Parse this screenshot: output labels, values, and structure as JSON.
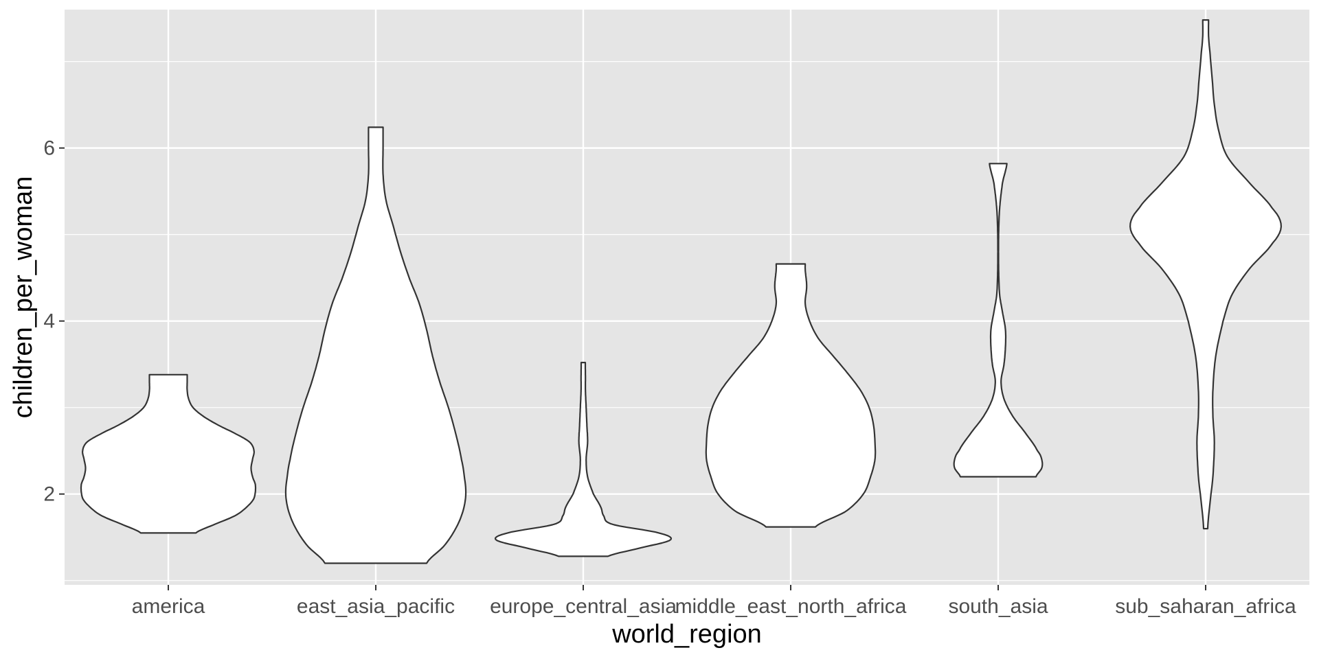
{
  "chart_data": {
    "type": "violin",
    "title": "",
    "xlabel": "world_region",
    "ylabel": "children_per_woman",
    "ylim": [
      0.95,
      7.6
    ],
    "yticks": [
      2,
      4,
      6
    ],
    "grid": true,
    "legend": "none",
    "colors": {
      "panel": "#e5e5e5",
      "grid": "#ffffff",
      "violin_fill": "#ffffff",
      "violin_stroke": "#333333"
    },
    "categories": [
      "america",
      "east_asia_pacific",
      "europe_central_asia",
      "middle_east_north_africa",
      "south_asia",
      "sub_saharan_africa"
    ],
    "series": [
      {
        "category": "america",
        "min": 1.55,
        "max": 3.38,
        "profile": [
          [
            1.55,
            0.19
          ],
          [
            1.65,
            0.32
          ],
          [
            1.75,
            0.46
          ],
          [
            1.85,
            0.54
          ],
          [
            1.95,
            0.59
          ],
          [
            2.1,
            0.6
          ],
          [
            2.2,
            0.58
          ],
          [
            2.3,
            0.57
          ],
          [
            2.4,
            0.58
          ],
          [
            2.5,
            0.59
          ],
          [
            2.6,
            0.56
          ],
          [
            2.7,
            0.46
          ],
          [
            2.8,
            0.34
          ],
          [
            2.9,
            0.24
          ],
          [
            3.0,
            0.17
          ],
          [
            3.1,
            0.14
          ],
          [
            3.2,
            0.13
          ],
          [
            3.3,
            0.13
          ],
          [
            3.38,
            0.13
          ]
        ]
      },
      {
        "category": "east_asia_pacific",
        "min": 1.2,
        "max": 6.24,
        "profile": [
          [
            1.2,
            0.35
          ],
          [
            1.4,
            0.47
          ],
          [
            1.6,
            0.55
          ],
          [
            1.8,
            0.6
          ],
          [
            2.0,
            0.62
          ],
          [
            2.2,
            0.61
          ],
          [
            2.4,
            0.59
          ],
          [
            2.7,
            0.55
          ],
          [
            3.0,
            0.5
          ],
          [
            3.3,
            0.44
          ],
          [
            3.6,
            0.39
          ],
          [
            3.9,
            0.35
          ],
          [
            4.2,
            0.3
          ],
          [
            4.5,
            0.23
          ],
          [
            4.8,
            0.17
          ],
          [
            5.1,
            0.12
          ],
          [
            5.4,
            0.07
          ],
          [
            5.7,
            0.05
          ],
          [
            6.0,
            0.05
          ],
          [
            6.24,
            0.05
          ]
        ]
      },
      {
        "category": "europe_central_asia",
        "min": 1.28,
        "max": 3.52,
        "profile": [
          [
            1.28,
            0.17
          ],
          [
            1.38,
            0.4
          ],
          [
            1.47,
            0.6
          ],
          [
            1.55,
            0.52
          ],
          [
            1.65,
            0.2
          ],
          [
            1.75,
            0.14
          ],
          [
            1.85,
            0.12
          ],
          [
            2.0,
            0.07
          ],
          [
            2.2,
            0.03
          ],
          [
            2.4,
            0.02
          ],
          [
            2.6,
            0.03
          ],
          [
            2.8,
            0.025
          ],
          [
            3.0,
            0.02
          ],
          [
            3.2,
            0.015
          ],
          [
            3.35,
            0.015
          ],
          [
            3.52,
            0.014
          ]
        ]
      },
      {
        "category": "middle_east_north_africa",
        "min": 1.62,
        "max": 4.66,
        "profile": [
          [
            1.62,
            0.17
          ],
          [
            1.8,
            0.38
          ],
          [
            2.0,
            0.5
          ],
          [
            2.2,
            0.55
          ],
          [
            2.4,
            0.58
          ],
          [
            2.6,
            0.58
          ],
          [
            2.8,
            0.57
          ],
          [
            3.0,
            0.54
          ],
          [
            3.2,
            0.48
          ],
          [
            3.4,
            0.39
          ],
          [
            3.6,
            0.29
          ],
          [
            3.8,
            0.19
          ],
          [
            4.0,
            0.13
          ],
          [
            4.2,
            0.1
          ],
          [
            4.4,
            0.11
          ],
          [
            4.6,
            0.1
          ],
          [
            4.66,
            0.1
          ]
        ]
      },
      {
        "category": "south_asia",
        "min": 2.2,
        "max": 5.82,
        "profile": [
          [
            2.2,
            0.26
          ],
          [
            2.3,
            0.3
          ],
          [
            2.4,
            0.3
          ],
          [
            2.5,
            0.27
          ],
          [
            2.7,
            0.19
          ],
          [
            2.9,
            0.1
          ],
          [
            3.1,
            0.04
          ],
          [
            3.3,
            0.02
          ],
          [
            3.5,
            0.04
          ],
          [
            3.7,
            0.05
          ],
          [
            3.9,
            0.05
          ],
          [
            4.1,
            0.03
          ],
          [
            4.3,
            0.01
          ],
          [
            4.6,
            0.003
          ],
          [
            5.0,
            0.003
          ],
          [
            5.3,
            0.01
          ],
          [
            5.6,
            0.03
          ],
          [
            5.82,
            0.06
          ]
        ]
      },
      {
        "category": "sub_saharan_africa",
        "min": 1.6,
        "max": 7.48,
        "profile": [
          [
            1.6,
            0.014
          ],
          [
            1.9,
            0.03
          ],
          [
            2.2,
            0.05
          ],
          [
            2.6,
            0.06
          ],
          [
            2.9,
            0.05
          ],
          [
            3.2,
            0.05
          ],
          [
            3.6,
            0.07
          ],
          [
            4.0,
            0.12
          ],
          [
            4.3,
            0.18
          ],
          [
            4.6,
            0.3
          ],
          [
            4.9,
            0.46
          ],
          [
            5.1,
            0.52
          ],
          [
            5.3,
            0.46
          ],
          [
            5.6,
            0.3
          ],
          [
            5.9,
            0.15
          ],
          [
            6.2,
            0.09
          ],
          [
            6.5,
            0.06
          ],
          [
            6.8,
            0.045
          ],
          [
            7.1,
            0.03
          ],
          [
            7.3,
            0.02
          ],
          [
            7.48,
            0.02
          ]
        ]
      }
    ]
  }
}
